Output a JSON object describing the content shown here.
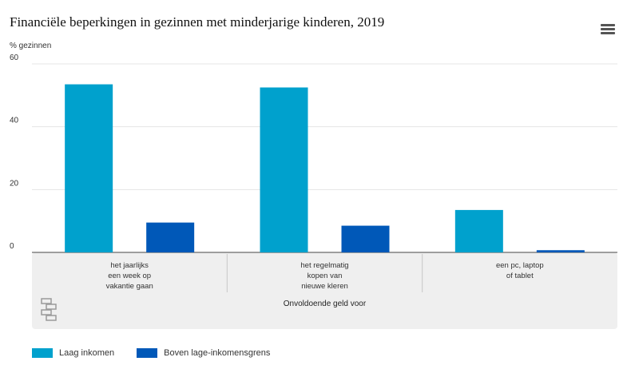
{
  "header": {
    "title": "Financiële beperkingen in gezinnen met minderjarige kinderen, 2019",
    "unit_label": "% gezinnen",
    "menu_icon": "hamburger-menu-icon"
  },
  "chart_data": {
    "type": "bar",
    "title": "Financiële beperkingen in gezinnen met minderjarige kinderen, 2019",
    "ylabel": "% gezinnen",
    "xlabel": "Onvoldoende geld voor",
    "ylim": [
      0,
      60
    ],
    "yticks": [
      0,
      20,
      40,
      60
    ],
    "grid": true,
    "legend_position": "bottom-left",
    "categories": [
      [
        "het jaarlijks",
        "een week op",
        "vakantie gaan"
      ],
      [
        "het regelmatig",
        "kopen van",
        "nieuwe kleren"
      ],
      [
        "een pc, laptop",
        "of tablet"
      ]
    ],
    "series": [
      {
        "name": "Laag inkomen",
        "color": "#00a1cd",
        "values": [
          53.5,
          52.5,
          13.5
        ]
      },
      {
        "name": "Boven lage-inkomensgrens",
        "color": "#0058b8",
        "values": [
          9.5,
          8.5,
          0.7
        ]
      }
    ]
  },
  "logo": {
    "icon": "cbs-logo-icon"
  }
}
